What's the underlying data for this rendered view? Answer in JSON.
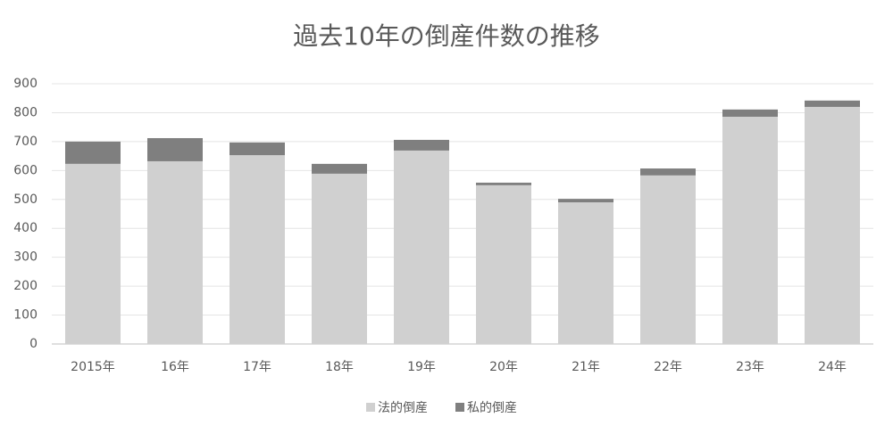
{
  "chart_data": {
    "type": "stacked_bar",
    "title": "過去10年の倒産件数の推移",
    "categories": [
      "2015年",
      "16年",
      "17年",
      "18年",
      "19年",
      "20年",
      "21年",
      "22年",
      "23年",
      "24年"
    ],
    "series": [
      {
        "name": "法的倒産",
        "color": "#d0d0d0",
        "values": [
          623,
          632,
          653,
          589,
          669,
          549,
          490,
          583,
          786,
          820
        ]
      },
      {
        "name": "私的倒産",
        "color": "#7f7f7f",
        "values": [
          77,
          80,
          44,
          34,
          37,
          9,
          12,
          24,
          25,
          22
        ]
      }
    ],
    "ylim": [
      0,
      900
    ],
    "yticks": [
      0,
      100,
      200,
      300,
      400,
      500,
      600,
      700,
      800,
      900
    ],
    "grid": true,
    "legend": "bottom"
  }
}
